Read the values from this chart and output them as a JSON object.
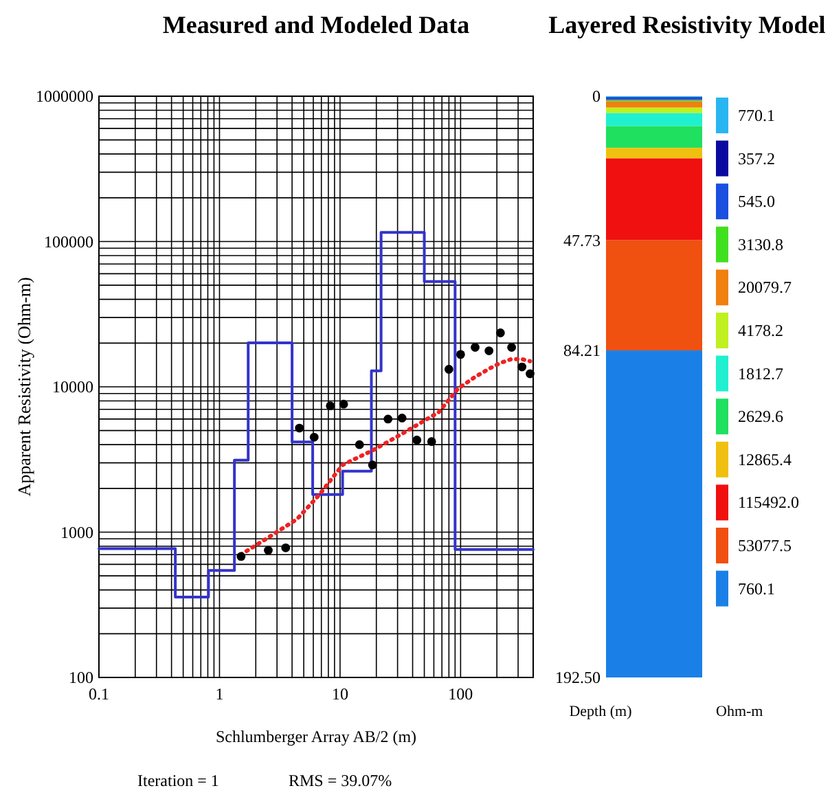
{
  "chart_data": [
    {
      "type": "line",
      "title": "Measured and Modeled Data",
      "xlabel": "Schlumberger  Array AB/2 (m)",
      "ylabel": "Apparent Resistivity (Ohm-m)",
      "log": "xy",
      "grid": true,
      "xlim": [
        0.1,
        400
      ],
      "xticks": [
        0.1,
        1,
        10,
        100
      ],
      "ylim": [
        100,
        1000000
      ],
      "yticks": [
        100,
        1000,
        10000,
        100000,
        1000000
      ],
      "annotations": [
        "Iteration = 1",
        "RMS = 39.07%"
      ],
      "series": [
        {
          "type": "step",
          "color": "#3333cc",
          "x": [
            0.1,
            0.43,
            0.81,
            1.33,
            1.73,
            4.0,
            5.93,
            10.5,
            18.2,
            21.9,
            50,
            90,
            400
          ],
          "values": [
            770.1,
            357.2,
            545.0,
            3130.8,
            20079.7,
            4178.2,
            1812.7,
            2629.6,
            12865.4,
            115492.0,
            53077.5,
            760.1,
            760.1
          ]
        },
        {
          "type": "line",
          "color": "#ee2222",
          "line_style": "dotted",
          "marker": "none",
          "x": [
            1.5,
            2.5,
            4.4,
            6.7,
            10.5,
            18.6,
            32,
            66,
            95,
            132,
            172,
            214,
            263,
            323,
            377
          ],
          "values": [
            700,
            910,
            1230,
            1800,
            2900,
            3650,
            4700,
            6700,
            9700,
            11700,
            13300,
            14600,
            15500,
            15500,
            15000
          ]
        },
        {
          "type": "scatter",
          "color": "#000000",
          "marker": "circle",
          "x": [
            1.51,
            2.54,
            3.54,
            4.6,
            6.1,
            8.3,
            10.7,
            14.5,
            18.6,
            25,
            32.7,
            43.4,
            57.5,
            80,
            100,
            132,
            172,
            214,
            265,
            323,
            377
          ],
          "values": [
            680,
            750,
            780,
            5200,
            4500,
            7400,
            7600,
            4000,
            2900,
            6000,
            6100,
            4300,
            4200,
            13200,
            16700,
            18700,
            17700,
            23500,
            18700,
            13700,
            12300
          ]
        }
      ]
    },
    {
      "type": "bar",
      "stacked": true,
      "title": "Layered Resistivity Model",
      "ylabel": "Depth (m)",
      "legend_title": "Ohm-m",
      "legend": "right",
      "categories": [
        null
      ],
      "ylim": [
        192.5,
        0
      ],
      "yticks": [
        0,
        47.73,
        84.21,
        {
          "value": 192.5,
          "label": "192.50"
        }
      ],
      "series": [
        {
          "name": "770.1",
          "color": "#29b6f0",
          "values": [
            0.4
          ]
        },
        {
          "name": "357.2",
          "color": "#0a0aa0",
          "values": [
            0.4
          ]
        },
        {
          "name": "545.0",
          "color": "#1a4fe0",
          "values": [
            0.5
          ]
        },
        {
          "name": "3130.8",
          "color": "#40e020",
          "values": [
            0.4
          ]
        },
        {
          "name": "20079.7",
          "color": "#f08010",
          "values": [
            2.1
          ]
        },
        {
          "name": "4178.2",
          "color": "#c0f020",
          "values": [
            1.8
          ]
        },
        {
          "name": "1812.7",
          "color": "#20f0d0",
          "values": [
            4.3
          ]
        },
        {
          "name": "2629.6",
          "color": "#20e060",
          "values": [
            7.2
          ]
        },
        {
          "name": "12865.4",
          "color": "#f0c010",
          "values": [
            3.5
          ]
        },
        {
          "name": "115492.0",
          "color": "#f01010",
          "values": [
            27.1
          ]
        },
        {
          "name": "53077.5",
          "color": "#f05010",
          "values": [
            36.5
          ]
        },
        {
          "name": "760.1",
          "color": "#1a80e8",
          "values": [
            108.3
          ]
        }
      ]
    }
  ]
}
